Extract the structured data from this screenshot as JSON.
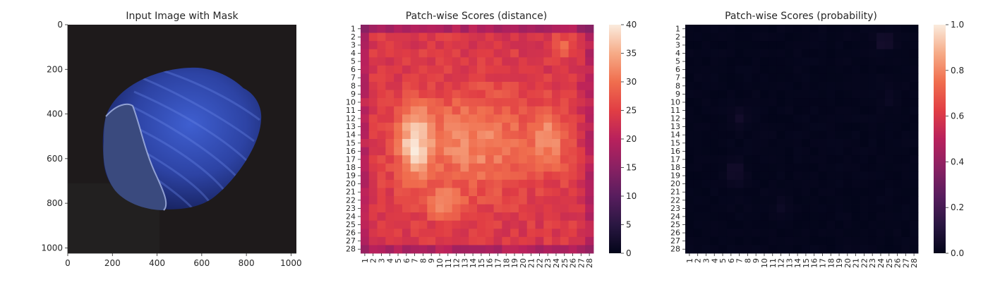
{
  "chart_data": [
    {
      "type": "image",
      "title": "Input Image with Mask",
      "xlabel": "",
      "ylabel": "",
      "xlim": [
        0,
        1024
      ],
      "ylim": [
        1024,
        0
      ],
      "xticks": [
        0,
        200,
        400,
        600,
        800,
        1000
      ],
      "yticks": [
        0,
        200,
        400,
        600,
        800,
        1000
      ],
      "image_description": "blue-tinted hazelnut on dark background",
      "grid": false
    },
    {
      "type": "heatmap",
      "title": "Patch-wise Scores (distance)",
      "xlabel": "",
      "ylabel": "",
      "rows": 28,
      "cols": 28,
      "colorbar": {
        "min": 0,
        "max": 40,
        "ticks": [
          0,
          5,
          10,
          15,
          20,
          25,
          30,
          35,
          40
        ]
      },
      "colormap": "rocket",
      "value_range": [
        14,
        41
      ],
      "values": []
    },
    {
      "type": "heatmap",
      "title": "Patch-wise Scores (probability)",
      "xlabel": "",
      "ylabel": "",
      "rows": 28,
      "cols": 28,
      "colorbar": {
        "min": 0.0,
        "max": 1.0,
        "ticks": [
          "0.0",
          "0.2",
          "0.4",
          "0.6",
          "0.8",
          "1.0"
        ]
      },
      "colormap": "rocket",
      "value_range": [
        0.0,
        0.08
      ],
      "values": []
    }
  ]
}
